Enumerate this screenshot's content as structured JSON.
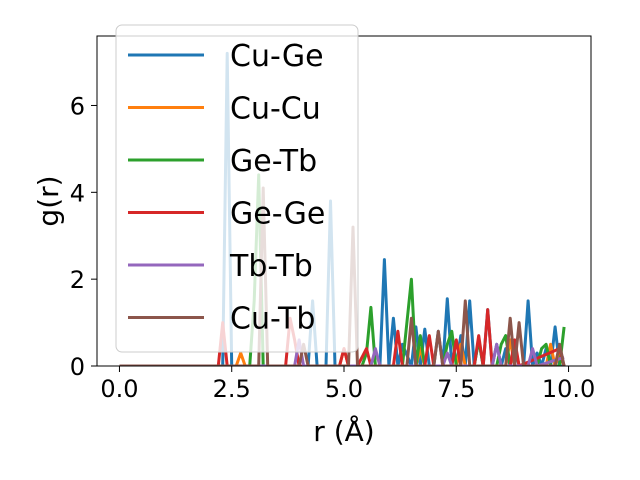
{
  "chart_data": {
    "type": "line",
    "xlabel": "r (Å)",
    "ylabel": "g(r)",
    "xlim": [
      -0.5,
      10.5
    ],
    "ylim": [
      0,
      7.6
    ],
    "xticks": [
      0.0,
      2.5,
      5.0,
      7.5,
      10.0
    ],
    "xtick_labels": [
      "0.0",
      "2.5",
      "5.0",
      "7.5",
      "10.0"
    ],
    "yticks": [
      0,
      2,
      4,
      6
    ],
    "ytick_labels": [
      "0",
      "2",
      "4",
      "6"
    ],
    "grid": false,
    "legend_position": "upper-left",
    "series": [
      {
        "name": "Cu-Ge",
        "color": "#1f77b4",
        "x": [
          0,
          2.3,
          2.4,
          2.5,
          4.2,
          4.3,
          4.4,
          4.6,
          4.7,
          4.8,
          5.8,
          5.9,
          6.0,
          6.1,
          6.2,
          6.3,
          6.5,
          6.6,
          6.7,
          6.8,
          6.9,
          7.0,
          7.1,
          7.2,
          7.3,
          7.4,
          7.5,
          7.6,
          7.7,
          7.8,
          7.9,
          8.0,
          8.1,
          8.2,
          8.3,
          8.4,
          8.5,
          8.6,
          8.7,
          8.8,
          8.9,
          9.0,
          9.1,
          9.2,
          9.3,
          9.4,
          9.5,
          9.6,
          9.7,
          9.8,
          9.9
        ],
        "y": [
          0,
          0,
          7.2,
          0,
          0,
          1.5,
          0,
          0,
          3.8,
          0,
          0,
          2.45,
          0,
          1.1,
          0,
          0.5,
          0,
          0.9,
          0,
          0.85,
          0,
          0,
          0.8,
          0,
          1.55,
          0,
          0,
          0.7,
          0,
          1.5,
          0,
          0.6,
          0,
          1.3,
          0,
          0.5,
          0,
          0.4,
          0,
          0.5,
          0,
          0,
          1.5,
          0,
          0.3,
          0,
          0.4,
          0,
          0.9,
          0,
          0
        ]
      },
      {
        "name": "Cu-Cu",
        "color": "#ff7f0e",
        "x": [
          0,
          2.6,
          2.7,
          2.8,
          4.9,
          5.0,
          5.1,
          6.6,
          6.7,
          6.8,
          7.5,
          7.6,
          7.7,
          8.6,
          8.7,
          8.8,
          9.5,
          9.6,
          9.7,
          9.8,
          9.9
        ],
        "y": [
          0,
          0,
          0.3,
          0,
          0,
          0.4,
          0,
          0,
          0.4,
          0,
          0,
          0.5,
          0,
          0,
          0.6,
          0,
          0,
          0.5,
          0,
          0.3,
          0
        ]
      },
      {
        "name": "Ge-Tb",
        "color": "#2ca02c",
        "x": [
          0,
          2.9,
          3.0,
          3.1,
          3.2,
          5.4,
          5.5,
          5.6,
          5.7,
          5.8,
          6.3,
          6.4,
          6.5,
          6.6,
          6.7,
          6.8,
          7.2,
          7.3,
          7.4,
          7.5,
          7.9,
          8.0,
          8.1,
          8.4,
          8.5,
          8.6,
          8.7,
          9.3,
          9.4,
          9.5,
          9.6,
          9.8,
          9.9
        ],
        "y": [
          0,
          0,
          1.5,
          4.4,
          0,
          0,
          0.3,
          1.35,
          0,
          0,
          0,
          1.0,
          2.0,
          0,
          0.7,
          0,
          0,
          0.5,
          0.8,
          0,
          0,
          0.6,
          0,
          0,
          0.5,
          0.7,
          0,
          0,
          0.4,
          0.5,
          0,
          0,
          0.9
        ]
      },
      {
        "name": "Ge-Ge",
        "color": "#d62728",
        "x": [
          0,
          2.2,
          2.3,
          2.4,
          3.7,
          3.8,
          3.9,
          4.0,
          4.9,
          5.0,
          5.1,
          5.3,
          5.4,
          5.5,
          5.6,
          6.1,
          6.2,
          6.3,
          6.8,
          6.9,
          7.0,
          7.4,
          7.5,
          7.6,
          7.9,
          8.0,
          8.1,
          8.2,
          8.3,
          8.7,
          8.8,
          8.9,
          9.8,
          9.9
        ],
        "y": [
          0,
          0,
          1.0,
          0,
          0,
          1.1,
          0.6,
          0,
          0,
          0.4,
          0,
          0,
          0.2,
          0.4,
          0,
          0,
          0.8,
          0,
          0,
          0.7,
          0,
          0,
          0.6,
          0,
          0,
          0.7,
          0,
          1.3,
          0,
          0,
          0.6,
          0,
          0.4,
          0
        ]
      },
      {
        "name": "Tb-Tb",
        "color": "#9467bd",
        "x": [
          0,
          3.9,
          4.0,
          4.1,
          5.6,
          5.7,
          5.8,
          7.2,
          7.3,
          7.4,
          8.3,
          8.4,
          8.5,
          9.1,
          9.2,
          9.3,
          9.9
        ],
        "y": [
          0,
          0,
          0.6,
          0,
          0,
          0.4,
          0,
          0,
          0.3,
          0,
          0,
          0.5,
          0,
          0,
          0.4,
          0,
          0.2
        ]
      },
      {
        "name": "Cu-Tb",
        "color": "#8c564b",
        "x": [
          0,
          3.1,
          3.2,
          3.3,
          4.0,
          4.1,
          4.2,
          5.1,
          5.2,
          5.3,
          6.4,
          6.5,
          6.6,
          7.0,
          7.1,
          7.2,
          7.6,
          7.7,
          7.8,
          8.6,
          8.7,
          8.8,
          8.9,
          9.0,
          9.1,
          9.7,
          9.8,
          9.9
        ],
        "y": [
          0,
          0,
          4.1,
          0,
          0,
          0.5,
          0,
          0,
          3.2,
          0,
          0,
          1.1,
          0,
          0,
          0.8,
          0,
          0,
          1.5,
          0,
          0,
          1.1,
          0,
          1.0,
          0,
          0,
          0,
          0.5,
          0
        ]
      }
    ]
  }
}
